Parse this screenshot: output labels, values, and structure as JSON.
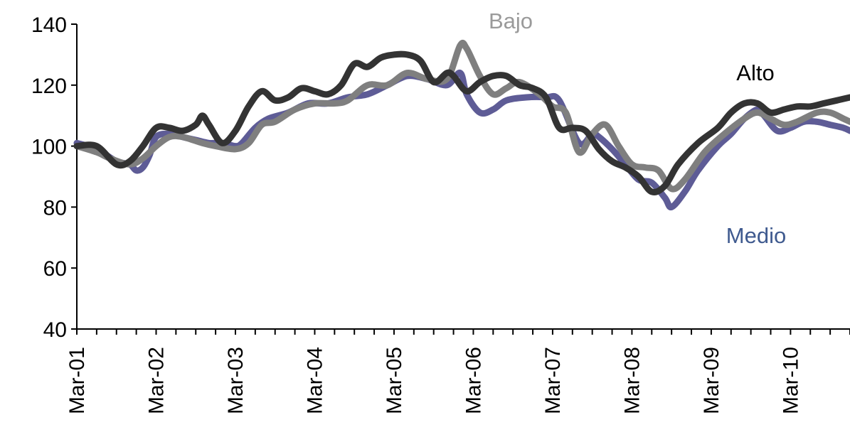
{
  "chart_data": {
    "type": "line",
    "title": "",
    "xlabel": "",
    "ylabel": "",
    "ylim": [
      40,
      140
    ],
    "yticks": [
      40,
      60,
      80,
      100,
      120,
      140
    ],
    "x_tick_labels": [
      "Mar-01",
      "Mar-02",
      "Mar-03",
      "Mar-04",
      "Mar-05",
      "Mar-06",
      "Mar-07",
      "Mar-08",
      "Mar-09",
      "Mar-10"
    ],
    "x_range_months": [
      0,
      117
    ],
    "grid": false,
    "legend": "inline labels",
    "series": [
      {
        "name": "Medio",
        "color": "#5e5c96",
        "label_color": "#3f5a8f",
        "points": [
          [
            0,
            101
          ],
          [
            3,
            99
          ],
          [
            6,
            95
          ],
          [
            8,
            94
          ],
          [
            9,
            92
          ],
          [
            10,
            93
          ],
          [
            11,
            97
          ],
          [
            12,
            103
          ],
          [
            14,
            104
          ],
          [
            16,
            103
          ],
          [
            18,
            102
          ],
          [
            20,
            101
          ],
          [
            22,
            101
          ],
          [
            24,
            100
          ],
          [
            25,
            101
          ],
          [
            27,
            106
          ],
          [
            29,
            109
          ],
          [
            32,
            111
          ],
          [
            35,
            114
          ],
          [
            38,
            114
          ],
          [
            41,
            116
          ],
          [
            44,
            117
          ],
          [
            47,
            120
          ],
          [
            50,
            123
          ],
          [
            53,
            122
          ],
          [
            56,
            120
          ],
          [
            58,
            124
          ],
          [
            59,
            117
          ],
          [
            61,
            111
          ],
          [
            63,
            112
          ],
          [
            65,
            115
          ],
          [
            68,
            116
          ],
          [
            71,
            116
          ],
          [
            73,
            115
          ],
          [
            76,
            101
          ],
          [
            78,
            104
          ],
          [
            79,
            103
          ],
          [
            81,
            99
          ],
          [
            83,
            94
          ],
          [
            85,
            89
          ],
          [
            87,
            88
          ],
          [
            89,
            83
          ],
          [
            90,
            80
          ],
          [
            92,
            85
          ],
          [
            94,
            92
          ],
          [
            97,
            100
          ],
          [
            99,
            104
          ],
          [
            101,
            109
          ],
          [
            103,
            112
          ],
          [
            104,
            110
          ],
          [
            106,
            105
          ],
          [
            108,
            106
          ],
          [
            110,
            108
          ],
          [
            112,
            108
          ],
          [
            114,
            107
          ],
          [
            116,
            106
          ],
          [
            117,
            105
          ]
        ]
      },
      {
        "name": "Bajo",
        "color": "#7f7f7f",
        "label_color": "#9a9a9a",
        "points": [
          [
            0,
            100
          ],
          [
            3,
            98
          ],
          [
            5,
            96
          ],
          [
            8,
            94
          ],
          [
            10,
            96
          ],
          [
            12,
            100
          ],
          [
            14,
            103
          ],
          [
            16,
            103
          ],
          [
            19,
            101
          ],
          [
            21,
            100
          ],
          [
            24,
            99
          ],
          [
            26,
            101
          ],
          [
            28,
            107
          ],
          [
            30,
            108
          ],
          [
            33,
            112
          ],
          [
            36,
            114
          ],
          [
            39,
            114
          ],
          [
            41,
            115
          ],
          [
            44,
            120
          ],
          [
            47,
            120
          ],
          [
            50,
            124
          ],
          [
            53,
            122
          ],
          [
            56,
            122
          ],
          [
            58,
            133
          ],
          [
            59,
            132
          ],
          [
            61,
            123
          ],
          [
            63,
            117
          ],
          [
            65,
            119
          ],
          [
            67,
            121
          ],
          [
            70,
            117
          ],
          [
            72,
            113
          ],
          [
            74,
            111
          ],
          [
            76,
            98
          ],
          [
            78,
            104
          ],
          [
            80,
            107
          ],
          [
            82,
            100
          ],
          [
            84,
            94
          ],
          [
            86,
            93
          ],
          [
            88,
            92
          ],
          [
            90,
            86
          ],
          [
            92,
            89
          ],
          [
            95,
            98
          ],
          [
            98,
            104
          ],
          [
            101,
            109
          ],
          [
            103,
            111
          ],
          [
            105,
            109
          ],
          [
            107,
            107
          ],
          [
            109,
            108
          ],
          [
            112,
            111
          ],
          [
            114,
            111
          ],
          [
            116,
            109
          ],
          [
            117,
            108
          ]
        ]
      },
      {
        "name": "Alto",
        "color": "#333333",
        "label_color": "#000000",
        "points": [
          [
            0,
            100
          ],
          [
            3,
            100
          ],
          [
            6,
            94
          ],
          [
            8,
            95
          ],
          [
            10,
            100
          ],
          [
            12,
            106
          ],
          [
            14,
            106
          ],
          [
            16,
            105
          ],
          [
            18,
            107
          ],
          [
            19,
            110
          ],
          [
            20,
            107
          ],
          [
            22,
            101
          ],
          [
            24,
            105
          ],
          [
            26,
            113
          ],
          [
            28,
            118
          ],
          [
            30,
            115
          ],
          [
            32,
            116
          ],
          [
            34,
            119
          ],
          [
            36,
            118
          ],
          [
            38,
            117
          ],
          [
            40,
            120
          ],
          [
            42,
            127
          ],
          [
            44,
            126
          ],
          [
            46,
            129
          ],
          [
            48,
            130
          ],
          [
            50,
            130
          ],
          [
            52,
            128
          ],
          [
            54,
            121
          ],
          [
            56,
            124
          ],
          [
            57,
            123
          ],
          [
            59,
            118
          ],
          [
            61,
            121
          ],
          [
            63,
            123
          ],
          [
            65,
            123
          ],
          [
            67,
            120
          ],
          [
            69,
            119
          ],
          [
            71,
            116
          ],
          [
            73,
            106
          ],
          [
            75,
            106
          ],
          [
            77,
            105
          ],
          [
            79,
            99
          ],
          [
            81,
            95
          ],
          [
            83,
            93
          ],
          [
            85,
            90
          ],
          [
            87,
            85
          ],
          [
            89,
            87
          ],
          [
            91,
            94
          ],
          [
            94,
            101
          ],
          [
            97,
            106
          ],
          [
            99,
            111
          ],
          [
            101,
            114
          ],
          [
            103,
            114
          ],
          [
            105,
            111
          ],
          [
            107,
            112
          ],
          [
            109,
            113
          ],
          [
            111,
            113
          ],
          [
            113,
            114
          ],
          [
            115,
            115
          ],
          [
            117,
            116
          ]
        ]
      }
    ]
  }
}
